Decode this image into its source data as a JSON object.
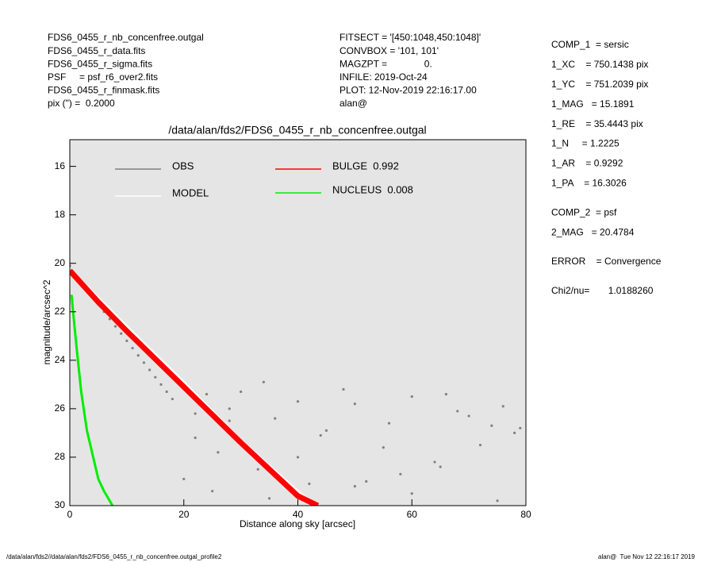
{
  "header": {
    "left": [
      "FDS6_0455_r_nb_concenfree.outgal",
      "FDS6_0455_r_data.fits",
      "FDS6_0455_r_sigma.fits",
      "PSF     = psf_r6_over2.fits",
      "FDS6_0455_r_finmask.fits",
      "pix (\") =  0.2000"
    ],
    "middle": [
      "FITSECT = '[450:1048,450:1048]'",
      "CONVBOX = '101, 101'",
      "MAGZPT =              0.",
      "INFILE: 2019-Oct-24",
      "PLOT: 12-Nov-2019 22:16:17.00",
      "alan@"
    ]
  },
  "sidebar": [
    [
      "COMP_1  = sersic",
      "1_XC    = 750.1438 pix",
      "1_YC    = 751.2039 pix",
      "1_MAG   = 15.1891",
      "1_RE    = 35.4443 pix",
      "1_N     = 1.2225",
      "1_AR    = 0.9292",
      "1_PA    = 16.3026"
    ],
    [
      "COMP_2  = psf",
      "2_MAG   = 20.4784"
    ],
    [
      "ERROR    = Convergence"
    ],
    [
      "Chi2/nu=       1.0188260"
    ]
  ],
  "footer": {
    "left": "/data/alan/fds2//data/alan/fds2/FDS6_0455_r_nb_concenfree.outgal_profile2",
    "right": "alan@  Tue Nov 12 22:16:17 2019"
  },
  "chart_data": {
    "type": "scatter",
    "title": "/data/alan/fds2/FDS6_0455_r_nb_concenfree.outgal",
    "x_label": "Distance along sky [arcsec]",
    "y_label": "magnitude/arcsec^2",
    "xlim": [
      0,
      80
    ],
    "ylim": [
      30,
      14.9
    ],
    "xticks": [
      0,
      20,
      40,
      60,
      80
    ],
    "yticks": [
      16,
      18,
      20,
      22,
      24,
      26,
      28,
      30
    ],
    "background": "#e5e5e5",
    "series": [
      {
        "name": "OBS",
        "color": "#808080",
        "mode": "points",
        "x": [
          0,
          1,
          2,
          3,
          4,
          5,
          6,
          7,
          8,
          9,
          10,
          11,
          12,
          13,
          14,
          15,
          16,
          17,
          18,
          20,
          22,
          24,
          26,
          28,
          30,
          33,
          36,
          40,
          44,
          48,
          52,
          56,
          60,
          64,
          68,
          72,
          76,
          79,
          20,
          25,
          30,
          35,
          40,
          45,
          50,
          55,
          60,
          65,
          70,
          75,
          78,
          22,
          28,
          34,
          42,
          50,
          58,
          66,
          74
        ],
        "values": [
          20.1,
          20.5,
          20.8,
          21.1,
          21.4,
          21.7,
          22.0,
          22.3,
          22.6,
          22.9,
          23.2,
          23.5,
          23.8,
          24.1,
          24.4,
          24.7,
          25.0,
          25.3,
          25.6,
          25.1,
          26.2,
          25.4,
          27.8,
          26.0,
          25.3,
          28.5,
          26.4,
          25.7,
          27.1,
          25.2,
          29.0,
          26.6,
          25.5,
          28.2,
          26.1,
          27.5,
          25.9,
          26.8,
          28.9,
          29.4,
          27.3,
          29.7,
          28.0,
          26.9,
          29.2,
          27.6,
          29.5,
          28.4,
          26.3,
          29.8,
          27.0,
          27.2,
          26.5,
          24.9,
          29.1,
          25.8,
          28.7,
          25.4,
          26.7
        ]
      },
      {
        "name": "MODEL",
        "color": "#ffffff",
        "mode": "line",
        "x": [
          0,
          10,
          20,
          30,
          40,
          43
        ],
        "values": [
          20.25,
          22.6,
          24.9,
          27.3,
          29.4,
          30
        ]
      },
      {
        "name": "BULGE  0.992",
        "color": "#ff0000",
        "mode": "line",
        "x": [
          0,
          5,
          10,
          20,
          30,
          40,
          43.5
        ],
        "values": [
          20.3,
          21.6,
          22.8,
          25.1,
          27.4,
          29.6,
          30
        ]
      },
      {
        "name": "NUCLEUS  0.008",
        "color": "#00ee00",
        "mode": "line",
        "x": [
          0.3,
          0.7,
          1.2,
          2,
          3,
          4,
          5,
          6,
          7.5
        ],
        "values": [
          21.3,
          22.3,
          23.5,
          25.3,
          26.9,
          27.9,
          28.9,
          29.4,
          30
        ]
      }
    ]
  }
}
